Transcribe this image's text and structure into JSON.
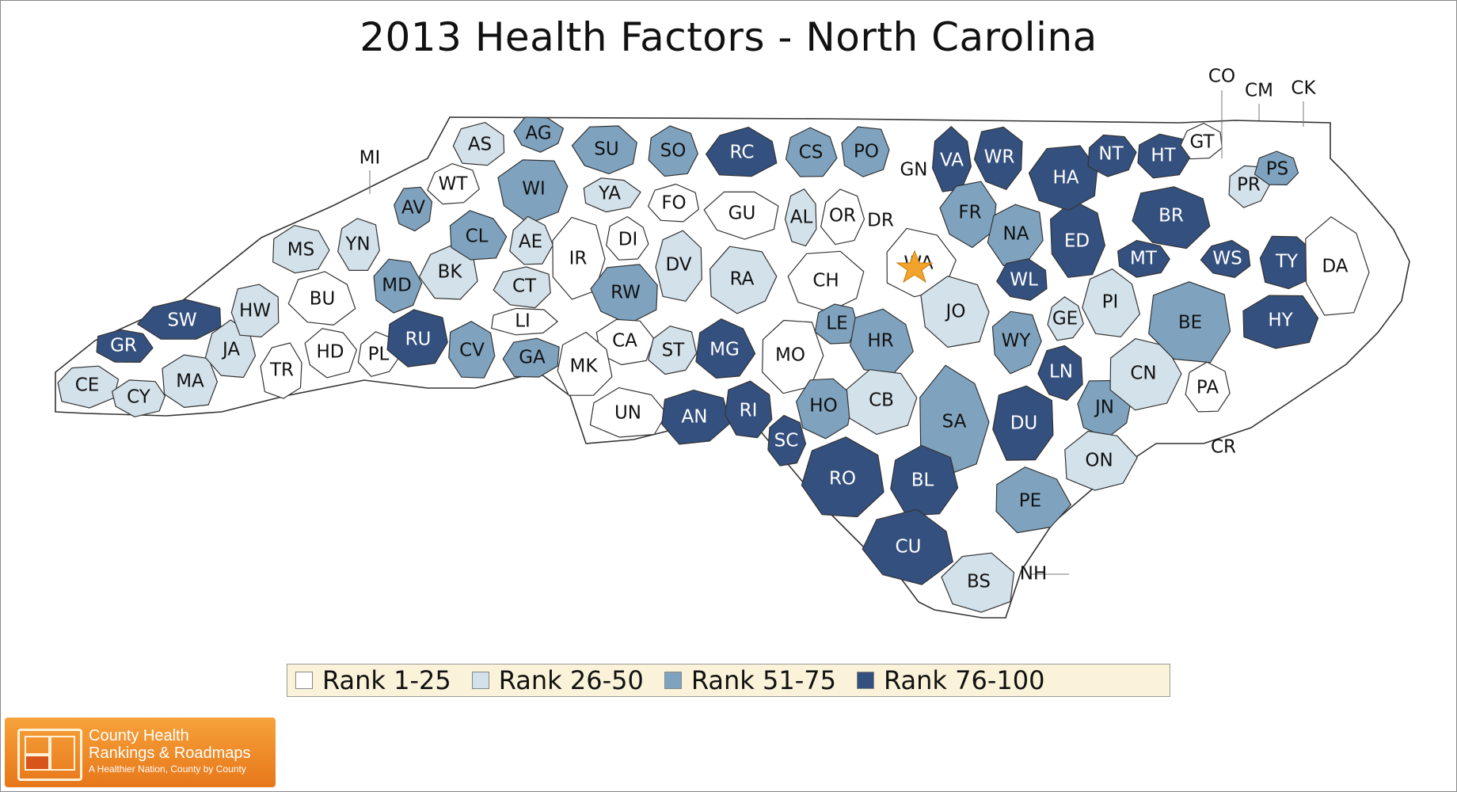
{
  "title": "2013 Health Factors - North Carolina",
  "legend": [
    {
      "label": "Rank 1-25",
      "color": "#ffffff"
    },
    {
      "label": "Rank 26-50",
      "color": "#d3e1ea"
    },
    {
      "label": "Rank 51-75",
      "color": "#7fa3bf"
    },
    {
      "label": "Rank 76-100",
      "color": "#34507f"
    }
  ],
  "counties": [
    {
      "code": "CE",
      "rank_group": 2
    },
    {
      "code": "CY",
      "rank_group": 2
    },
    {
      "code": "GR",
      "rank_group": 4
    },
    {
      "code": "SW",
      "rank_group": 4
    },
    {
      "code": "MA",
      "rank_group": 2
    },
    {
      "code": "JA",
      "rank_group": 2
    },
    {
      "code": "HW",
      "rank_group": 2
    },
    {
      "code": "TR",
      "rank_group": 1
    },
    {
      "code": "HD",
      "rank_group": 1
    },
    {
      "code": "PL",
      "rank_group": 1
    },
    {
      "code": "BU",
      "rank_group": 1
    },
    {
      "code": "MS",
      "rank_group": 2
    },
    {
      "code": "YN",
      "rank_group": 2
    },
    {
      "code": "MI",
      "rank_group": 3
    },
    {
      "code": "AV",
      "rank_group": 3
    },
    {
      "code": "MD",
      "rank_group": 3
    },
    {
      "code": "RU",
      "rank_group": 4
    },
    {
      "code": "BK",
      "rank_group": 2
    },
    {
      "code": "CL",
      "rank_group": 3
    },
    {
      "code": "WT",
      "rank_group": 1
    },
    {
      "code": "AS",
      "rank_group": 2
    },
    {
      "code": "AG",
      "rank_group": 3
    },
    {
      "code": "WI",
      "rank_group": 3
    },
    {
      "code": "AE",
      "rank_group": 2
    },
    {
      "code": "CT",
      "rank_group": 2
    },
    {
      "code": "LI",
      "rank_group": 1
    },
    {
      "code": "CV",
      "rank_group": 3
    },
    {
      "code": "GA",
      "rank_group": 3
    },
    {
      "code": "SU",
      "rank_group": 3
    },
    {
      "code": "YA",
      "rank_group": 2
    },
    {
      "code": "SO",
      "rank_group": 3
    },
    {
      "code": "FO",
      "rank_group": 1
    },
    {
      "code": "IR",
      "rank_group": 1
    },
    {
      "code": "DI",
      "rank_group": 1
    },
    {
      "code": "DV",
      "rank_group": 2
    },
    {
      "code": "RW",
      "rank_group": 3
    },
    {
      "code": "CA",
      "rank_group": 1
    },
    {
      "code": "ST",
      "rank_group": 2
    },
    {
      "code": "MK",
      "rank_group": 1
    },
    {
      "code": "UN",
      "rank_group": 1
    },
    {
      "code": "AN",
      "rank_group": 4
    },
    {
      "code": "RC",
      "rank_group": 4
    },
    {
      "code": "GU",
      "rank_group": 1
    },
    {
      "code": "RA",
      "rank_group": 2
    },
    {
      "code": "MG",
      "rank_group": 4
    },
    {
      "code": "RI",
      "rank_group": 4
    },
    {
      "code": "MO",
      "rank_group": 1
    },
    {
      "code": "CS",
      "rank_group": 3
    },
    {
      "code": "AL",
      "rank_group": 2
    },
    {
      "code": "CH",
      "rank_group": 1
    },
    {
      "code": "PO",
      "rank_group": 3
    },
    {
      "code": "OR",
      "rank_group": 1
    },
    {
      "code": "DR",
      "rank_group": 1
    },
    {
      "code": "GN",
      "rank_group": 2
    },
    {
      "code": "VA",
      "rank_group": 4
    },
    {
      "code": "WR",
      "rank_group": 4
    },
    {
      "code": "FR",
      "rank_group": 3
    },
    {
      "code": "WA",
      "rank_group": 1
    },
    {
      "code": "LE",
      "rank_group": 3
    },
    {
      "code": "HR",
      "rank_group": 3
    },
    {
      "code": "JO",
      "rank_group": 2
    },
    {
      "code": "NA",
      "rank_group": 3
    },
    {
      "code": "WL",
      "rank_group": 4
    },
    {
      "code": "HO",
      "rank_group": 3
    },
    {
      "code": "CB",
      "rank_group": 2
    },
    {
      "code": "SC",
      "rank_group": 4
    },
    {
      "code": "RO",
      "rank_group": 4
    },
    {
      "code": "SA",
      "rank_group": 3
    },
    {
      "code": "BL",
      "rank_group": 4
    },
    {
      "code": "CU",
      "rank_group": 4
    },
    {
      "code": "BS",
      "rank_group": 2
    },
    {
      "code": "NH",
      "rank_group": 1
    },
    {
      "code": "PE",
      "rank_group": 3
    },
    {
      "code": "DU",
      "rank_group": 4
    },
    {
      "code": "WY",
      "rank_group": 3
    },
    {
      "code": "GE",
      "rank_group": 2
    },
    {
      "code": "LN",
      "rank_group": 4
    },
    {
      "code": "JN",
      "rank_group": 3
    },
    {
      "code": "ON",
      "rank_group": 2
    },
    {
      "code": "ED",
      "rank_group": 4
    },
    {
      "code": "PI",
      "rank_group": 2
    },
    {
      "code": "CN",
      "rank_group": 2
    },
    {
      "code": "PA",
      "rank_group": 1
    },
    {
      "code": "CR",
      "rank_group": 1
    },
    {
      "code": "HA",
      "rank_group": 4
    },
    {
      "code": "NT",
      "rank_group": 4
    },
    {
      "code": "HT",
      "rank_group": 4
    },
    {
      "code": "BR",
      "rank_group": 4
    },
    {
      "code": "MT",
      "rank_group": 4
    },
    {
      "code": "BE",
      "rank_group": 3
    },
    {
      "code": "WS",
      "rank_group": 4
    },
    {
      "code": "TY",
      "rank_group": 4
    },
    {
      "code": "HY",
      "rank_group": 4
    },
    {
      "code": "DA",
      "rank_group": 1
    },
    {
      "code": "GT",
      "rank_group": 1
    },
    {
      "code": "PR",
      "rank_group": 2
    },
    {
      "code": "PS",
      "rank_group": 3
    },
    {
      "code": "CO",
      "rank_group": 1
    },
    {
      "code": "CM",
      "rank_group": 1
    },
    {
      "code": "CK",
      "rank_group": 1
    }
  ],
  "capital_marker": "star-icon",
  "logo": {
    "line1": "County Health",
    "line2": "Rankings & Roadmaps",
    "tagline": "A Healthier Nation, County by County"
  }
}
